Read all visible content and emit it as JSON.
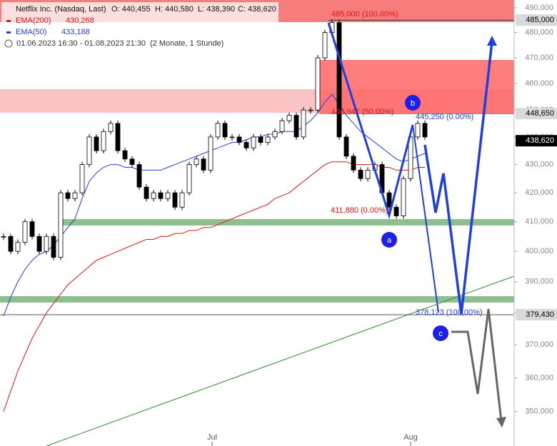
{
  "chart_data": {
    "type": "candlestick",
    "title": "Netflix Inc. (Nasdaq, Last)",
    "ohlc": [
      "O: 440,455",
      "H: 440,580",
      "L: 438,390",
      "C: 438,620"
    ],
    "period": "01.06.2023 16:30 - 01.08.2023 21:30",
    "period_note": "(2 Monate, 1 Stunde)",
    "log_scale": true,
    "grid": false,
    "xlim": [
      -0.5,
      71.5
    ],
    "xticks": [
      {
        "value": 29.2,
        "label": "Jul"
      },
      {
        "value": 57,
        "label": "Aug"
      }
    ],
    "ylim": [
      340100,
      493200
    ],
    "yticks": [
      {
        "value": 350000,
        "label": "350,000"
      },
      {
        "value": 360000,
        "label": "360,000"
      },
      {
        "value": 370000,
        "label": "370,000"
      },
      {
        "value": 380000,
        "label": "380,000"
      },
      {
        "value": 390000,
        "label": "390,000"
      },
      {
        "value": 400000,
        "label": "400,000"
      },
      {
        "value": 410000,
        "label": "410,000"
      },
      {
        "value": 420000,
        "label": "420,000"
      },
      {
        "value": 430000,
        "label": "430,000"
      },
      {
        "value": 440000,
        "label": "440,000"
      },
      {
        "value": 450000,
        "label": "450,000"
      },
      {
        "value": 460000,
        "label": "460,000"
      },
      {
        "value": 470000,
        "label": "470,000"
      },
      {
        "value": 480000,
        "label": "480,000"
      },
      {
        "value": 490000,
        "label": "490,000"
      }
    ],
    "values": [
      405000,
      400000,
      403000,
      410000,
      405000,
      400000,
      405000,
      398000,
      420000,
      418000,
      420000,
      430000,
      440000,
      435000,
      442000,
      445000,
      435000,
      432000,
      430000,
      422000,
      418000,
      420000,
      418000,
      420000,
      415000,
      420000,
      430000,
      432000,
      428000,
      440000,
      445000,
      440000,
      440000,
      438000,
      436000,
      440000,
      438000,
      440000,
      442000,
      446000,
      448000,
      440000,
      450000,
      450000,
      470000,
      480000,
      484000,
      440000,
      433000,
      428000,
      425000,
      428000,
      430000,
      420000,
      415000,
      412000,
      425000,
      440000,
      445000,
      440000
    ],
    "series": [
      {
        "name": "EMA(200)",
        "value_label": "430,268",
        "color": "#e41414",
        "values": [
          350000,
          356000,
          362000,
          367000,
          372000,
          376000,
          380000,
          383000,
          386000,
          389000,
          391000,
          393000,
          395000,
          397000,
          398000,
          399000,
          400000,
          401000,
          402000,
          403000,
          404000,
          404000,
          405000,
          405000,
          406000,
          406000,
          407000,
          407000,
          408000,
          408000,
          409000,
          410000,
          411000,
          412000,
          413000,
          414000,
          415000,
          416000,
          418000,
          419000,
          420000,
          422000,
          424000,
          426000,
          428000,
          430000,
          431000,
          431000,
          431000,
          430000,
          430000,
          430000,
          430000,
          429000,
          429000,
          428000,
          428000,
          428000,
          429000,
          429000
        ]
      },
      {
        "name": "EMA(50)",
        "value_label": "433,188",
        "color": "#1f3fe0",
        "values": [
          379000,
          385000,
          390000,
          394000,
          397000,
          399000,
          400000,
          402000,
          405000,
          408000,
          411000,
          418000,
          424000,
          427000,
          429000,
          430000,
          430000,
          429000,
          429000,
          428000,
          428000,
          428000,
          428000,
          429000,
          430000,
          431000,
          432000,
          433000,
          434000,
          435000,
          436000,
          437000,
          438000,
          438000,
          439000,
          440000,
          440000,
          441000,
          441000,
          442000,
          442000,
          442000,
          444000,
          446000,
          449000,
          453000,
          456000,
          452000,
          448000,
          445000,
          442000,
          440000,
          438000,
          436000,
          434000,
          432000,
          431000,
          432000,
          433000,
          434000
        ]
      }
    ],
    "price_tags": [
      {
        "value": 485000,
        "label": "485,000",
        "color": "#d9d9d9",
        "text_color": "#000000"
      },
      {
        "value": 448650,
        "label": "448,650",
        "color": "#d9d9d9",
        "text_color": "#000000"
      },
      {
        "value": 438620,
        "label": "438,620",
        "color": "#000000",
        "text_color": "#ffffff"
      },
      {
        "value": 379430,
        "label": "379,430",
        "color": "#d9d9d9",
        "text_color": "#000000"
      }
    ],
    "annotations": [
      {
        "text": "485,000 (100.00%)",
        "color": "#e41414"
      },
      {
        "text": "446,947 (50,00%)",
        "color": "#e41414"
      },
      {
        "text": "411,880 (0.00%)",
        "color": "#e41414"
      },
      {
        "text": "445,250 (0.00%)",
        "color": "#1f3fe0"
      },
      {
        "text": "378,123 (100,00%)",
        "color": "#1f3fe0"
      }
    ],
    "wave_labels": [
      "a",
      "b",
      "c"
    ]
  }
}
